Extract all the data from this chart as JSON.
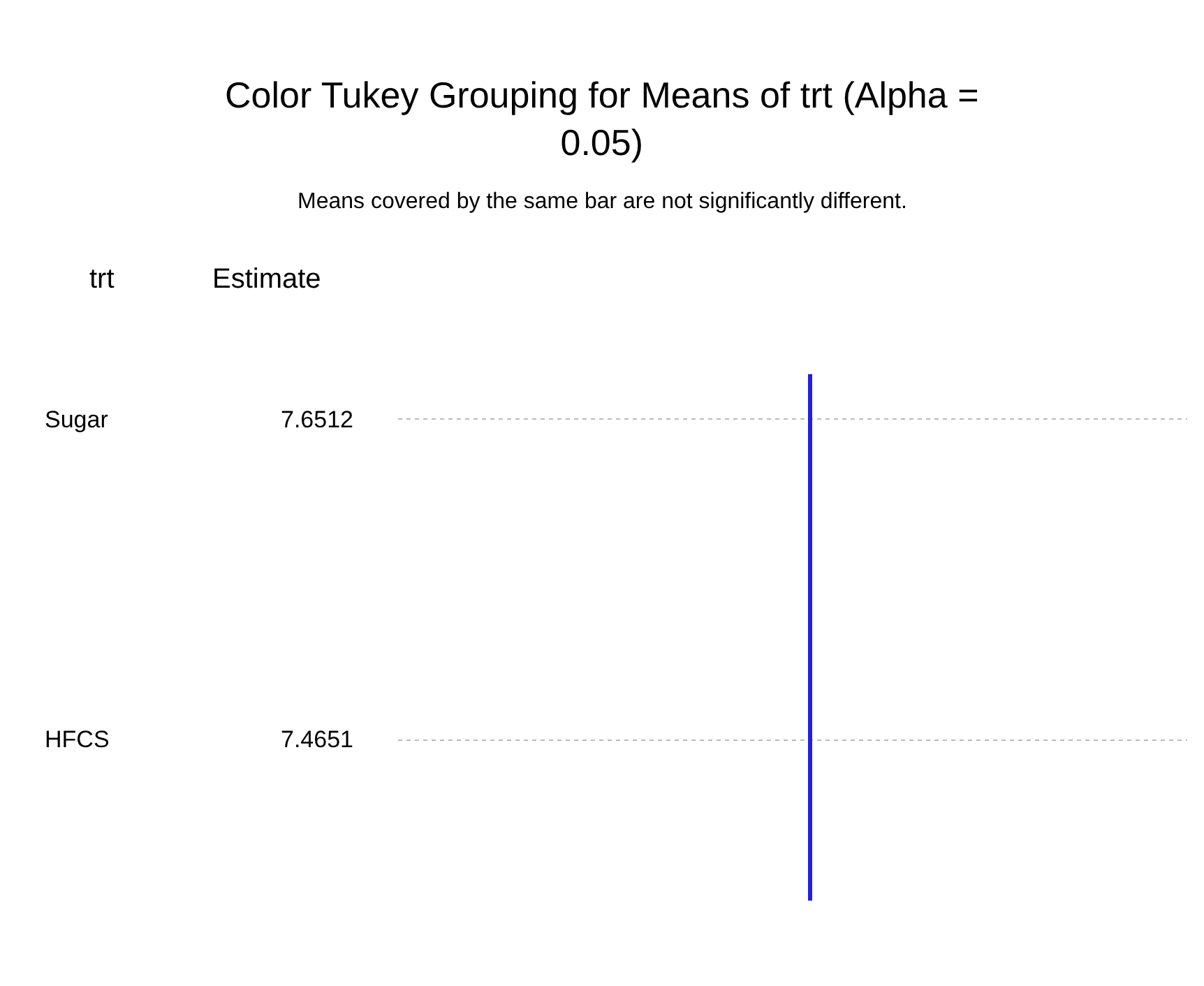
{
  "chart_data": {
    "type": "other",
    "title": "Color Tukey Grouping for Means of trt (Alpha = 0.05)",
    "subtitle": "Means covered by the same bar are not significantly different.",
    "annotations": [
      "trt",
      "Estimate"
    ],
    "categories": [
      "Sugar",
      "HFCS"
    ],
    "values": [
      7.6512,
      7.4651
    ],
    "data_labels": true,
    "color": "#2020e0"
  }
}
